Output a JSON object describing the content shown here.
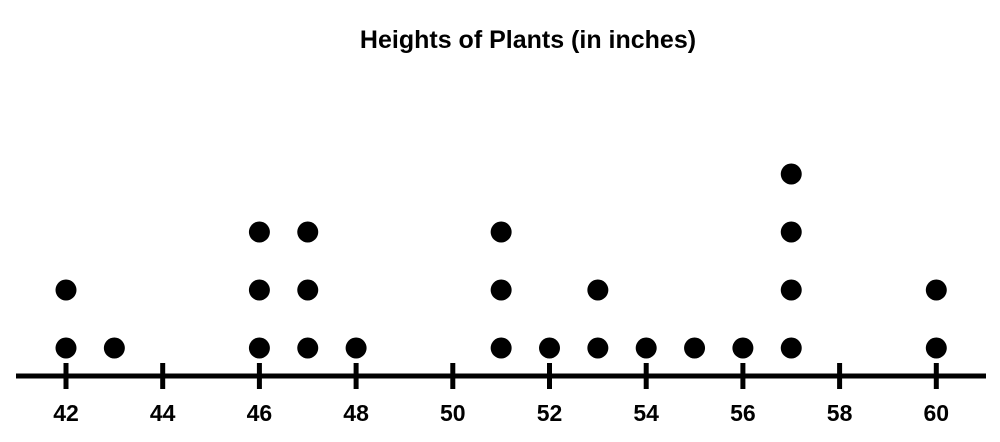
{
  "chart_data": {
    "type": "dot-plot",
    "title": "Heights of Plants (in inches)",
    "xlabel": "",
    "ylabel": "",
    "xlim": [
      41,
      61
    ],
    "ticks": [
      42,
      44,
      46,
      48,
      50,
      52,
      54,
      56,
      58,
      60
    ],
    "tick_labels": [
      "42",
      "44",
      "46",
      "48",
      "50",
      "52",
      "54",
      "56",
      "58",
      "60"
    ],
    "points": [
      {
        "x": 42,
        "count": 2
      },
      {
        "x": 43,
        "count": 1
      },
      {
        "x": 46,
        "count": 3
      },
      {
        "x": 47,
        "count": 3
      },
      {
        "x": 48,
        "count": 1
      },
      {
        "x": 51,
        "count": 3
      },
      {
        "x": 52,
        "count": 1
      },
      {
        "x": 53,
        "count": 2
      },
      {
        "x": 54,
        "count": 1
      },
      {
        "x": 55,
        "count": 1
      },
      {
        "x": 56,
        "count": 1
      },
      {
        "x": 57,
        "count": 4
      },
      {
        "x": 60,
        "count": 2
      }
    ],
    "grid": false,
    "legend": "none",
    "dot_color": "#000000",
    "axis_color": "#000000"
  }
}
